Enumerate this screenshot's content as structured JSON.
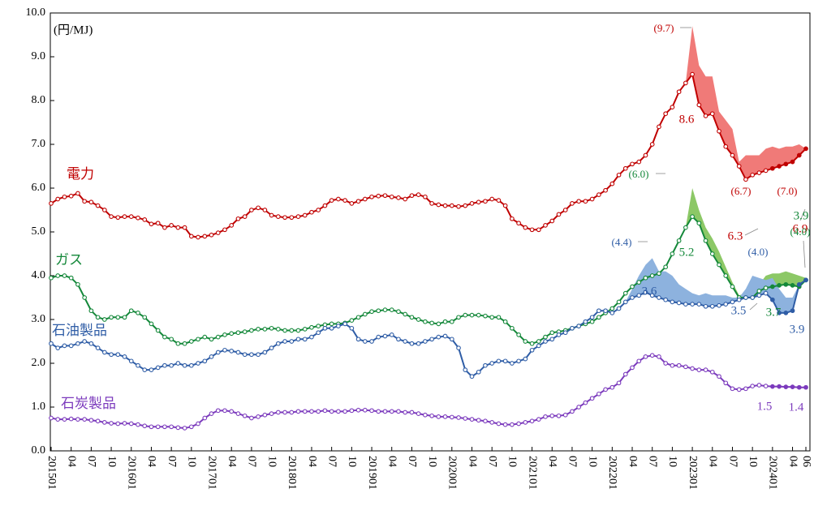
{
  "chart_data": {
    "type": "line",
    "unit_label": "(円/MJ)",
    "categories": [
      "201501",
      null,
      null,
      "04",
      null,
      null,
      "07",
      null,
      null,
      "10",
      null,
      null,
      "201601",
      null,
      null,
      "04",
      null,
      null,
      "07",
      null,
      null,
      "10",
      null,
      null,
      "201701",
      null,
      null,
      "04",
      null,
      null,
      "07",
      null,
      null,
      "10",
      null,
      null,
      "201801",
      null,
      null,
      "04",
      null,
      null,
      "07",
      null,
      null,
      "10",
      null,
      null,
      "201901",
      null,
      null,
      "04",
      null,
      null,
      "07",
      null,
      null,
      "10",
      null,
      null,
      "202001",
      null,
      null,
      "04",
      null,
      null,
      "07",
      null,
      null,
      "10",
      null,
      null,
      "202101",
      null,
      null,
      "04",
      null,
      null,
      "07",
      null,
      null,
      "10",
      null,
      null,
      "202201",
      null,
      null,
      "04",
      null,
      null,
      "07",
      null,
      null,
      "10",
      null,
      null,
      "202301",
      null,
      null,
      "04",
      null,
      null,
      "07",
      null,
      null,
      "10",
      null,
      null,
      "202401",
      null,
      null,
      "04",
      null,
      "06"
    ],
    "ylim": [
      0,
      10
    ],
    "yticks": [
      {
        "value": 0,
        "label": "0.0"
      },
      {
        "value": 1,
        "label": "1.0"
      },
      {
        "value": 2,
        "label": "2.0"
      },
      {
        "value": 3,
        "label": "3.0"
      },
      {
        "value": 4,
        "label": "4.0"
      },
      {
        "value": 5,
        "label": "5.0"
      },
      {
        "value": 6,
        "label": "6.0"
      },
      {
        "value": 7,
        "label": "7.0"
      },
      {
        "value": 8,
        "label": "8.0"
      },
      {
        "value": 9,
        "label": "9.0"
      },
      {
        "value": 10,
        "label": "10.0"
      }
    ],
    "series": [
      {
        "name": "電力",
        "color": "#c00000",
        "band_color": "#f07a78",
        "values": [
          5.65,
          5.75,
          5.8,
          5.82,
          5.88,
          5.7,
          5.68,
          5.6,
          5.5,
          5.35,
          5.33,
          5.35,
          5.35,
          5.32,
          5.28,
          5.18,
          5.2,
          5.1,
          5.15,
          5.1,
          5.1,
          4.9,
          4.88,
          4.9,
          4.93,
          4.98,
          5.05,
          5.15,
          5.3,
          5.35,
          5.5,
          5.55,
          5.5,
          5.38,
          5.35,
          5.33,
          5.33,
          5.35,
          5.38,
          5.45,
          5.5,
          5.6,
          5.72,
          5.75,
          5.72,
          5.65,
          5.7,
          5.75,
          5.8,
          5.82,
          5.83,
          5.8,
          5.78,
          5.75,
          5.83,
          5.85,
          5.8,
          5.65,
          5.62,
          5.6,
          5.6,
          5.58,
          5.6,
          5.65,
          5.68,
          5.7,
          5.75,
          5.72,
          5.6,
          5.3,
          5.2,
          5.1,
          5.05,
          5.05,
          5.15,
          5.25,
          5.4,
          5.5,
          5.65,
          5.7,
          5.7,
          5.75,
          5.85,
          5.95,
          6.1,
          6.3,
          6.45,
          6.55,
          6.6,
          6.75,
          7.0,
          7.4,
          7.7,
          7.85,
          8.2,
          8.4,
          8.6,
          7.9,
          7.65,
          7.7,
          7.3,
          6.95,
          6.75,
          6.5,
          6.2,
          6.3,
          6.35,
          6.4,
          6.45,
          6.5,
          6.55,
          6.6,
          6.75,
          6.9
        ],
        "upper": [
          null,
          null,
          null,
          null,
          null,
          null,
          null,
          null,
          null,
          null,
          null,
          null,
          null,
          null,
          null,
          null,
          null,
          null,
          null,
          null,
          null,
          null,
          null,
          null,
          null,
          null,
          null,
          null,
          null,
          null,
          null,
          null,
          null,
          null,
          null,
          null,
          null,
          null,
          null,
          null,
          null,
          null,
          null,
          null,
          null,
          null,
          null,
          null,
          null,
          null,
          null,
          null,
          null,
          null,
          null,
          null,
          null,
          null,
          null,
          null,
          null,
          null,
          null,
          null,
          null,
          null,
          null,
          null,
          null,
          null,
          null,
          null,
          null,
          null,
          null,
          null,
          null,
          null,
          null,
          null,
          null,
          null,
          null,
          null,
          null,
          null,
          null,
          null,
          null,
          null,
          null,
          null,
          null,
          null,
          null,
          8.4,
          9.7,
          8.8,
          8.55,
          8.55,
          7.75,
          7.55,
          7.35,
          6.6,
          6.75,
          6.75,
          6.75,
          6.9,
          6.95,
          6.9,
          6.95,
          6.95,
          7.0,
          6.9
        ]
      },
      {
        "name": "ガス",
        "color": "#14883a",
        "band_color": "#8cc866",
        "values": [
          3.95,
          4.0,
          4.0,
          3.95,
          3.8,
          3.5,
          3.2,
          3.05,
          3.0,
          3.05,
          3.05,
          3.05,
          3.2,
          3.15,
          3.05,
          2.9,
          2.75,
          2.6,
          2.55,
          2.45,
          2.45,
          2.5,
          2.55,
          2.6,
          2.55,
          2.6,
          2.65,
          2.68,
          2.7,
          2.72,
          2.75,
          2.78,
          2.78,
          2.8,
          2.78,
          2.75,
          2.75,
          2.75,
          2.78,
          2.82,
          2.85,
          2.88,
          2.9,
          2.9,
          2.92,
          2.98,
          3.05,
          3.12,
          3.18,
          3.2,
          3.22,
          3.22,
          3.18,
          3.12,
          3.05,
          3.0,
          2.95,
          2.92,
          2.9,
          2.95,
          2.95,
          3.05,
          3.1,
          3.1,
          3.1,
          3.08,
          3.05,
          3.05,
          2.95,
          2.8,
          2.65,
          2.5,
          2.45,
          2.5,
          2.6,
          2.7,
          2.72,
          2.75,
          2.8,
          2.85,
          2.9,
          2.95,
          3.05,
          3.15,
          3.25,
          3.4,
          3.6,
          3.75,
          3.85,
          3.95,
          4.0,
          4.05,
          4.2,
          4.5,
          4.8,
          5.1,
          5.35,
          5.2,
          4.8,
          4.5,
          4.25,
          4.0,
          3.75,
          3.5,
          3.5,
          3.5,
          3.65,
          3.72,
          3.75,
          3.78,
          3.8,
          3.78,
          3.75,
          3.9
        ],
        "upper": [
          null,
          null,
          null,
          null,
          null,
          null,
          null,
          null,
          null,
          null,
          null,
          null,
          null,
          null,
          null,
          null,
          null,
          null,
          null,
          null,
          null,
          null,
          null,
          null,
          null,
          null,
          null,
          null,
          null,
          null,
          null,
          null,
          null,
          null,
          null,
          null,
          null,
          null,
          null,
          null,
          null,
          null,
          null,
          null,
          null,
          null,
          null,
          null,
          null,
          null,
          null,
          null,
          null,
          null,
          null,
          null,
          null,
          null,
          null,
          null,
          null,
          null,
          null,
          null,
          null,
          null,
          null,
          null,
          null,
          null,
          null,
          null,
          null,
          null,
          null,
          null,
          null,
          null,
          null,
          null,
          null,
          null,
          null,
          null,
          null,
          null,
          null,
          null,
          null,
          null,
          null,
          null,
          null,
          null,
          null,
          5.1,
          6.0,
          5.5,
          5.1,
          4.85,
          4.55,
          4.2,
          3.85,
          3.55,
          3.6,
          3.7,
          3.8,
          4.0,
          4.05,
          4.05,
          4.1,
          4.05,
          4.0,
          3.95
        ]
      },
      {
        "name": "石油製品",
        "color": "#2f5da6",
        "band_color": "#8db2de",
        "values": [
          2.45,
          2.35,
          2.4,
          2.4,
          2.45,
          2.5,
          2.45,
          2.35,
          2.25,
          2.2,
          2.2,
          2.15,
          2.05,
          1.95,
          1.85,
          1.85,
          1.9,
          1.95,
          1.95,
          2.0,
          1.95,
          1.95,
          2.0,
          2.05,
          2.15,
          2.25,
          2.3,
          2.28,
          2.25,
          2.2,
          2.2,
          2.2,
          2.25,
          2.35,
          2.45,
          2.5,
          2.5,
          2.55,
          2.55,
          2.6,
          2.7,
          2.8,
          2.8,
          2.85,
          2.9,
          2.8,
          2.55,
          2.5,
          2.5,
          2.6,
          2.62,
          2.65,
          2.55,
          2.5,
          2.45,
          2.45,
          2.5,
          2.55,
          2.6,
          2.62,
          2.55,
          2.35,
          1.85,
          1.7,
          1.8,
          1.95,
          2.0,
          2.05,
          2.05,
          2.0,
          2.05,
          2.1,
          2.3,
          2.4,
          2.5,
          2.55,
          2.65,
          2.7,
          2.8,
          2.85,
          2.95,
          3.05,
          3.2,
          3.2,
          3.15,
          3.25,
          3.4,
          3.5,
          3.55,
          3.62,
          3.55,
          3.5,
          3.45,
          3.4,
          3.38,
          3.35,
          3.35,
          3.35,
          3.3,
          3.3,
          3.32,
          3.35,
          3.4,
          3.45,
          3.5,
          3.5,
          3.55,
          3.6,
          3.45,
          3.15,
          3.15,
          3.2,
          3.8,
          3.9
        ],
        "upper": [
          null,
          null,
          null,
          null,
          null,
          null,
          null,
          null,
          null,
          null,
          null,
          null,
          null,
          null,
          null,
          null,
          null,
          null,
          null,
          null,
          null,
          null,
          null,
          null,
          null,
          null,
          null,
          null,
          null,
          null,
          null,
          null,
          null,
          null,
          null,
          null,
          null,
          null,
          null,
          null,
          null,
          null,
          null,
          null,
          null,
          null,
          null,
          null,
          null,
          null,
          null,
          null,
          null,
          null,
          null,
          null,
          null,
          null,
          null,
          null,
          null,
          null,
          null,
          null,
          null,
          null,
          null,
          null,
          null,
          null,
          null,
          null,
          null,
          null,
          null,
          null,
          null,
          null,
          null,
          null,
          null,
          null,
          null,
          null,
          null,
          null,
          3.4,
          3.7,
          4.0,
          4.25,
          4.4,
          4.1,
          4.1,
          4.0,
          3.8,
          3.7,
          3.6,
          3.55,
          3.6,
          3.55,
          3.55,
          3.55,
          3.5,
          3.5,
          3.7,
          4.0,
          3.95,
          3.9,
          3.95,
          3.7,
          3.5,
          3.5,
          3.8,
          3.9
        ]
      },
      {
        "name": "石炭製品",
        "color": "#7c3bbd",
        "values": [
          0.75,
          0.72,
          0.72,
          0.73,
          0.72,
          0.72,
          0.7,
          0.68,
          0.65,
          0.63,
          0.62,
          0.63,
          0.62,
          0.6,
          0.57,
          0.55,
          0.55,
          0.55,
          0.55,
          0.53,
          0.52,
          0.55,
          0.62,
          0.75,
          0.85,
          0.92,
          0.92,
          0.9,
          0.85,
          0.8,
          0.75,
          0.78,
          0.82,
          0.85,
          0.88,
          0.88,
          0.88,
          0.9,
          0.9,
          0.9,
          0.9,
          0.92,
          0.9,
          0.9,
          0.9,
          0.92,
          0.93,
          0.93,
          0.92,
          0.9,
          0.9,
          0.9,
          0.9,
          0.88,
          0.88,
          0.85,
          0.82,
          0.8,
          0.78,
          0.78,
          0.77,
          0.76,
          0.74,
          0.72,
          0.7,
          0.68,
          0.65,
          0.62,
          0.6,
          0.6,
          0.62,
          0.65,
          0.68,
          0.72,
          0.78,
          0.8,
          0.8,
          0.82,
          0.9,
          1.0,
          1.1,
          1.2,
          1.3,
          1.4,
          1.45,
          1.55,
          1.75,
          1.9,
          2.05,
          2.15,
          2.18,
          2.15,
          2.0,
          1.95,
          1.95,
          1.92,
          1.88,
          1.85,
          1.85,
          1.8,
          1.7,
          1.55,
          1.42,
          1.4,
          1.42,
          1.48,
          1.5,
          1.48,
          1.47,
          1.47,
          1.46,
          1.46,
          1.45,
          1.45
        ]
      }
    ],
    "annotations": [
      {
        "text": "(9.7)",
        "color": "#c00000"
      },
      {
        "text": "8.6",
        "color": "#c00000"
      },
      {
        "text": "(6.7)",
        "color": "#c00000"
      },
      {
        "text": "(7.0)",
        "color": "#c00000"
      },
      {
        "text": "6.3",
        "color": "#c00000"
      },
      {
        "text": "6.9",
        "color": "#c00000"
      },
      {
        "text": "(6.0)",
        "color": "#14883a"
      },
      {
        "text": "5.2",
        "color": "#14883a"
      },
      {
        "text": "(4.4)",
        "color": "#2f5da6"
      },
      {
        "text": "3.6",
        "color": "#2f5da6"
      },
      {
        "text": "(4.0)",
        "color": "#2f5da6"
      },
      {
        "text": "3.9",
        "color": "#14883a"
      },
      {
        "text": "(4.0)",
        "color": "#14883a"
      },
      {
        "text": "3.5",
        "color": "#2f5da6"
      },
      {
        "text": "3.7",
        "color": "#14883a"
      },
      {
        "text": "3.9",
        "color": "#2f5da6"
      },
      {
        "text": "1.5",
        "color": "#7c3bbd"
      },
      {
        "text": "1.4",
        "color": "#7c3bbd"
      }
    ]
  }
}
